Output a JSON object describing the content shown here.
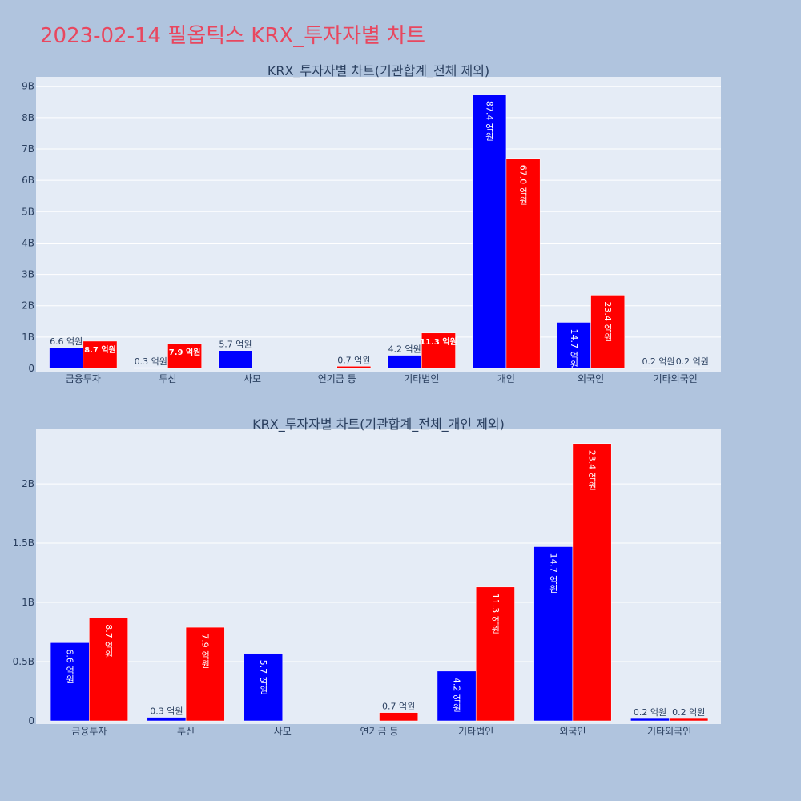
{
  "page_title": "2023-02-14 필옵틱스 KRX_투자자별 차트",
  "colors": {
    "series_a": "#0000ff",
    "series_b": "#ff0000",
    "plot_bg": "#e5ecf6",
    "page_bg": "#b0c4de",
    "title": "#e8475f"
  },
  "chart_data": [
    {
      "type": "bar",
      "title": "KRX_투자자별 차트(기관합계_전체 제외)",
      "categories": [
        "금융투자",
        "투신",
        "사모",
        "연기금 등",
        "기타법인",
        "개인",
        "외국인",
        "기타외국인"
      ],
      "series": [
        {
          "values": [
            0.66,
            0.03,
            0.57,
            0,
            0.42,
            8.74,
            1.47,
            0.02
          ],
          "labels": [
            "6.6 억원",
            "0.3 억원",
            "5.7 억원",
            "",
            "4.2 억원",
            "87.4 억원",
            "14.7 억원",
            "0.2 억원"
          ]
        },
        {
          "values": [
            0.87,
            0.79,
            0,
            0.07,
            1.13,
            6.7,
            2.34,
            0.02
          ],
          "labels": [
            "8.7 억원",
            "7.9 억원",
            "",
            "0.7 억원",
            "11.3 억원",
            "67.0 억원",
            "23.4 억원",
            "0.2 억원"
          ]
        }
      ],
      "ylim": [
        0,
        9.3
      ],
      "yticks": [
        0,
        1,
        2,
        3,
        4,
        5,
        6,
        7,
        8,
        9
      ],
      "ytick_labels": [
        "0",
        "1B",
        "2B",
        "3B",
        "4B",
        "5B",
        "6B",
        "7B",
        "8B",
        "9B"
      ],
      "grid": true
    },
    {
      "type": "bar",
      "title": "KRX_투자자별 차트(기관합계_전체_개인 제외)",
      "categories": [
        "금융투자",
        "투신",
        "사모",
        "연기금 등",
        "기타법인",
        "외국인",
        "기타외국인"
      ],
      "series": [
        {
          "values": [
            0.66,
            0.03,
            0.57,
            0,
            0.42,
            1.47,
            0.02
          ],
          "labels": [
            "6.6 억원",
            "0.3 억원",
            "5.7 억원",
            "",
            "4.2 억원",
            "14.7 억원",
            "0.2 억원"
          ]
        },
        {
          "values": [
            0.87,
            0.79,
            0,
            0.07,
            1.13,
            2.34,
            0.02
          ],
          "labels": [
            "8.7 억원",
            "7.9 억원",
            "",
            "0.7 억원",
            "11.3 억원",
            "23.4 억원",
            "0.2 억원"
          ]
        }
      ],
      "ylim": [
        0,
        2.46
      ],
      "yticks": [
        0,
        0.5,
        1,
        1.5,
        2
      ],
      "ytick_labels": [
        "0",
        "0.5B",
        "1B",
        "1.5B",
        "2B"
      ],
      "grid": true
    }
  ]
}
